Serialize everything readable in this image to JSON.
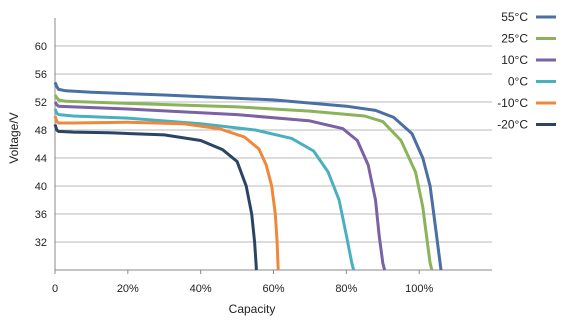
{
  "chart_data": {
    "type": "line",
    "title": "",
    "xlabel": "Capacity",
    "ylabel": "Voltage/V",
    "xlim": [
      0,
      120
    ],
    "ylim": [
      28,
      64
    ],
    "x_ticks": [
      "0",
      "20%",
      "40%",
      "60%",
      "80%",
      "100%"
    ],
    "y_ticks": [
      "32",
      "36",
      "40",
      "44",
      "48",
      "52",
      "56",
      "60"
    ],
    "grid": "horizontal",
    "legend_position": "top-right",
    "series": [
      {
        "name": "55°C",
        "color": "#4a6fa5",
        "points": [
          [
            0,
            54.8
          ],
          [
            0.5,
            54.2
          ],
          [
            1,
            53.8
          ],
          [
            3,
            53.6
          ],
          [
            10,
            53.4
          ],
          [
            30,
            53.0
          ],
          [
            60,
            52.3
          ],
          [
            80,
            51.4
          ],
          [
            88,
            50.8
          ],
          [
            93,
            49.8
          ],
          [
            98,
            47.5
          ],
          [
            101,
            44.0
          ],
          [
            103,
            40.0
          ],
          [
            104.5,
            34.0
          ],
          [
            105.5,
            30.0
          ],
          [
            106,
            28.0
          ]
        ]
      },
      {
        "name": "25°C",
        "color": "#8ab35a",
        "points": [
          [
            0,
            53.0
          ],
          [
            0.5,
            52.6
          ],
          [
            1,
            52.3
          ],
          [
            3,
            52.1
          ],
          [
            20,
            51.8
          ],
          [
            50,
            51.3
          ],
          [
            70,
            50.7
          ],
          [
            85,
            50.0
          ],
          [
            90,
            49.2
          ],
          [
            95,
            46.5
          ],
          [
            99,
            42.0
          ],
          [
            101,
            37.0
          ],
          [
            102,
            33.0
          ],
          [
            103,
            29.0
          ],
          [
            103.5,
            28.0
          ]
        ]
      },
      {
        "name": "10°C",
        "color": "#7a62a3",
        "points": [
          [
            0,
            52.0
          ],
          [
            0.5,
            51.6
          ],
          [
            1,
            51.4
          ],
          [
            5,
            51.3
          ],
          [
            20,
            51.0
          ],
          [
            50,
            50.2
          ],
          [
            70,
            49.3
          ],
          [
            79,
            48.2
          ],
          [
            83,
            46.5
          ],
          [
            86,
            43.0
          ],
          [
            88,
            38.0
          ],
          [
            89,
            33.0
          ],
          [
            90,
            29.0
          ],
          [
            90.5,
            28.0
          ]
        ]
      },
      {
        "name": "0°C",
        "color": "#4ab0c1",
        "points": [
          [
            0,
            51.0
          ],
          [
            0.5,
            50.4
          ],
          [
            1,
            50.2
          ],
          [
            5,
            50.0
          ],
          [
            20,
            49.7
          ],
          [
            40,
            48.9
          ],
          [
            55,
            48.0
          ],
          [
            65,
            46.8
          ],
          [
            71,
            45.0
          ],
          [
            75,
            42.0
          ],
          [
            78,
            38.0
          ],
          [
            80,
            33.0
          ],
          [
            81.5,
            29.0
          ],
          [
            82,
            28.0
          ]
        ]
      },
      {
        "name": "-10°C",
        "color": "#f0883c",
        "points": [
          [
            0,
            50.0
          ],
          [
            0.5,
            49.2
          ],
          [
            1,
            49.0
          ],
          [
            5,
            49.0
          ],
          [
            20,
            49.1
          ],
          [
            35,
            48.9
          ],
          [
            45,
            48.2
          ],
          [
            52,
            47.0
          ],
          [
            56,
            45.3
          ],
          [
            58,
            43.0
          ],
          [
            59.5,
            40.0
          ],
          [
            60.5,
            36.0
          ],
          [
            61,
            32.0
          ],
          [
            61.3,
            28.0
          ]
        ]
      },
      {
        "name": "-20°C",
        "color": "#2b4466",
        "points": [
          [
            0,
            48.8
          ],
          [
            0.5,
            48.0
          ],
          [
            1,
            47.8
          ],
          [
            5,
            47.7
          ],
          [
            15,
            47.6
          ],
          [
            30,
            47.3
          ],
          [
            40,
            46.5
          ],
          [
            46,
            45.2
          ],
          [
            50,
            43.5
          ],
          [
            52.5,
            40.0
          ],
          [
            54,
            36.0
          ],
          [
            54.8,
            32.0
          ],
          [
            55.2,
            29.0
          ],
          [
            55.3,
            28.0
          ]
        ]
      }
    ]
  }
}
